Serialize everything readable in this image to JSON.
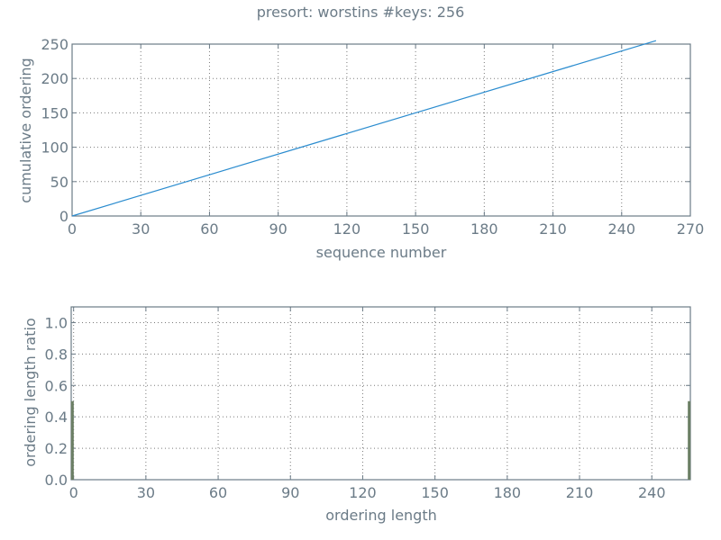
{
  "title": "presort: worstins #keys: 256",
  "chart_data": [
    {
      "type": "line",
      "xlabel": "sequence number",
      "ylabel": "cumulative ordering",
      "xlim": [
        0,
        270
      ],
      "ylim": [
        0,
        250
      ],
      "xticks": [
        0,
        30,
        60,
        90,
        120,
        150,
        180,
        210,
        240,
        270
      ],
      "yticks": [
        0,
        50,
        100,
        150,
        200,
        250
      ],
      "grid": true,
      "series": [
        {
          "x": [
            0,
            255
          ],
          "y": [
            0,
            255
          ],
          "color": "#2b8ccf"
        }
      ]
    },
    {
      "type": "bar",
      "xlabel": "ordering length",
      "ylabel": "ordering length ratio",
      "xlim": [
        -1,
        256
      ],
      "ylim": [
        0,
        1.1
      ],
      "xticks": [
        0,
        30,
        60,
        90,
        120,
        150,
        180,
        210,
        240
      ],
      "yticks": [
        0.0,
        0.2,
        0.4,
        0.6,
        0.8,
        1.0
      ],
      "ytick_labels": [
        "0.0",
        "0.2",
        "0.4",
        "0.6",
        "0.8",
        "1.0"
      ],
      "grid": true,
      "bar_color": "#6b7f64",
      "bars": [
        {
          "x": -0.5,
          "value": 0.5
        },
        {
          "x": 255.5,
          "value": 0.5
        }
      ]
    }
  ]
}
